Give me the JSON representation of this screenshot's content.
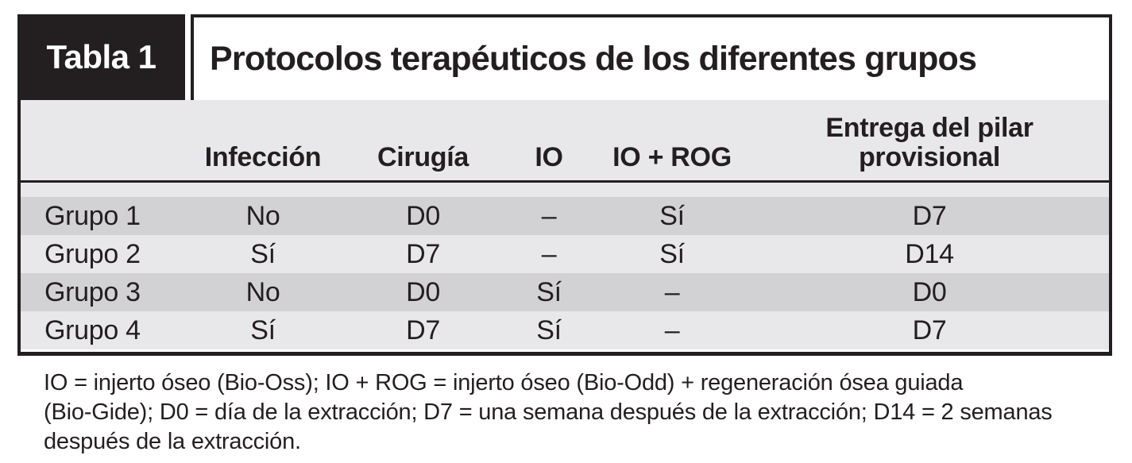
{
  "header": {
    "label": "Tabla 1",
    "title": "Protocolos terapéuticos de los diferentes grupos"
  },
  "table": {
    "columns": [
      "",
      "Infección",
      "Cirugía",
      "IO",
      "IO + ROG",
      "Entrega del pilar provisional"
    ],
    "rows": [
      {
        "cells": [
          "Grupo 1",
          "No",
          "D0",
          "–",
          "Sí",
          "D7"
        ]
      },
      {
        "cells": [
          "Grupo 2",
          "Sí",
          "D7",
          "–",
          "Sí",
          "D14"
        ]
      },
      {
        "cells": [
          "Grupo 3",
          "No",
          "D0",
          "Sí",
          "–",
          "D0"
        ]
      },
      {
        "cells": [
          "Grupo 4",
          "Sí",
          "D7",
          "Sí",
          "–",
          "D7"
        ]
      }
    ]
  },
  "footnote": {
    "lines": [
      "IO = injerto óseo (Bio-Oss); IO + ROG = injerto óseo (Bio-Odd) + regeneración ósea guiada",
      "(Bio-Gide); D0 = día de la extracción; D7 = una semana después de la extracción; D14 = 2 semanas",
      "después de la extracción."
    ]
  },
  "colors": {
    "black": "#231f20",
    "row_dark": "#d2d2d4",
    "row_light": "#e8e8ea",
    "header_gray": "#e8e8ea"
  }
}
